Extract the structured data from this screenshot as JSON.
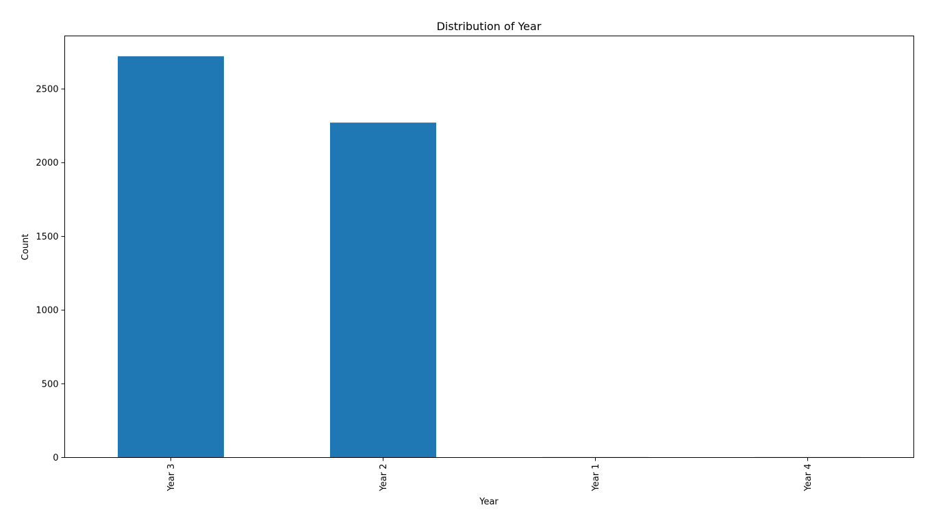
{
  "chart_data": {
    "type": "bar",
    "title": "Distribution of Year",
    "xlabel": "Year",
    "ylabel": "Count",
    "categories": [
      "Year 3",
      "Year 2",
      "Year 1",
      "Year 4"
    ],
    "values": [
      2722,
      2272,
      3,
      3
    ],
    "ylim": [
      0,
      2860
    ],
    "yticks": [
      0,
      500,
      1000,
      1500,
      2000,
      2500
    ],
    "ytick_labels": [
      "0",
      "500",
      "1000",
      "1500",
      "2000",
      "2500"
    ],
    "bar_color": "#1f77b4",
    "grid": false,
    "legend": "none"
  }
}
